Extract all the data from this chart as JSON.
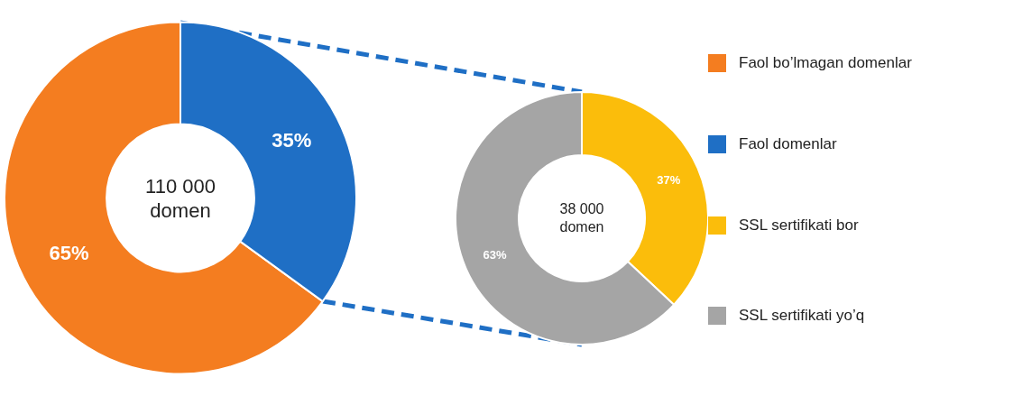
{
  "chart_data": [
    {
      "type": "donut",
      "categories": [
        "Faol bo’lmagan domenlar",
        "Faol domenlar"
      ],
      "values": [
        65,
        35
      ],
      "colors": [
        "#f47d20",
        "#1f6fc5"
      ],
      "value_labels": [
        "65%",
        "35%"
      ],
      "annotations": [
        "110 000",
        "domen"
      ],
      "legend": "right"
    },
    {
      "type": "donut",
      "categories": [
        "SSL sertifikati bor",
        "SSL sertifikati yo’q"
      ],
      "values": [
        37,
        63
      ],
      "colors": [
        "#fbbd0b",
        "#a5a5a5"
      ],
      "value_labels": [
        "37%",
        "63%"
      ],
      "annotations": [
        "38 000",
        "domen"
      ],
      "legend": "right"
    }
  ]
}
